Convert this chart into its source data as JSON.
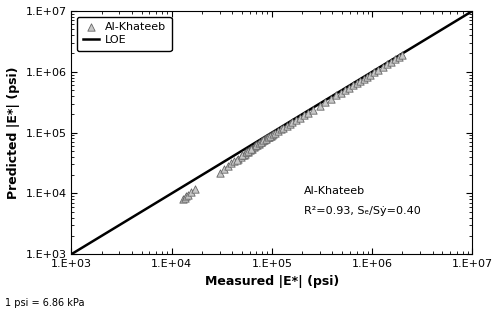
{
  "title": "",
  "xlabel": "Measured |E*| (psi)",
  "ylabel": "Predicted |E*| (psi)",
  "xlim": [
    1000,
    10000000
  ],
  "ylim": [
    1000,
    10000000
  ],
  "annotation_name": "Al-Khateeb",
  "annotation_r2": "R²=0.93, Sₑ/Sẏ=0.40",
  "footnote": "1 psi = 6.86 kPa",
  "legend_triangle_label": "Al-Khateeb",
  "legend_line_label": "LOE",
  "triangle_color": "#c8c8c8",
  "triangle_edge_color": "#666666",
  "loe_color": "#000000",
  "background_color": "#ffffff",
  "measured": [
    13000,
    13500,
    14000,
    14500,
    15500,
    17000,
    30000,
    33000,
    36000,
    39000,
    42000,
    46000,
    49000,
    52000,
    54000,
    57000,
    60000,
    63000,
    66000,
    68000,
    71000,
    74000,
    77000,
    80000,
    83000,
    86000,
    88000,
    91000,
    94000,
    97000,
    100000,
    45000,
    50000,
    55000,
    58000,
    62000,
    70000,
    75000,
    78000,
    82000,
    87000,
    92000,
    95000,
    102000,
    108000,
    115000,
    122000,
    130000,
    140000,
    150000,
    160000,
    175000,
    190000,
    210000,
    230000,
    255000,
    300000,
    340000,
    390000,
    440000,
    490000,
    540000,
    590000,
    640000,
    700000,
    760000,
    820000,
    880000,
    950000,
    1050000,
    1150000,
    1280000,
    1400000,
    1550000,
    1700000,
    1850000,
    2000000
  ],
  "predicted": [
    8000,
    8500,
    9000,
    9500,
    10500,
    12000,
    22000,
    25000,
    28000,
    31000,
    34000,
    37000,
    40000,
    43000,
    45000,
    48000,
    51000,
    54000,
    57000,
    60000,
    63000,
    66000,
    69000,
    72000,
    75000,
    78000,
    80000,
    83000,
    86000,
    89000,
    92000,
    36000,
    42000,
    47000,
    50000,
    54000,
    62000,
    67000,
    70000,
    74000,
    79000,
    84000,
    87000,
    93000,
    99000,
    106000,
    113000,
    120000,
    130000,
    140000,
    150000,
    162000,
    175000,
    194000,
    213000,
    236000,
    277000,
    316000,
    361000,
    408000,
    455000,
    502000,
    549000,
    595000,
    651000,
    708000,
    765000,
    823000,
    890000,
    985000,
    1080000,
    1200000,
    1320000,
    1465000,
    1610000,
    1760000,
    1890000
  ]
}
